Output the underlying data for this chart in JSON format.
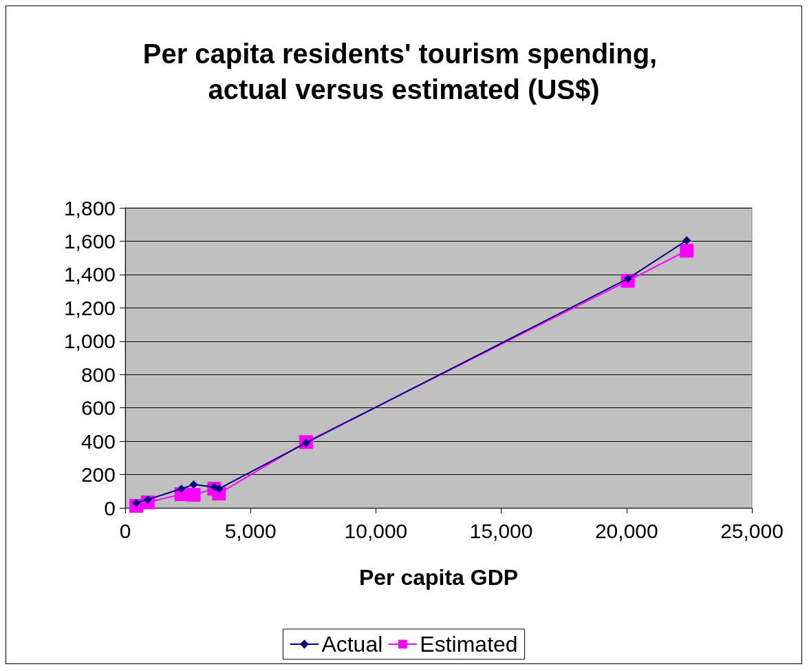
{
  "chart_data": {
    "type": "line",
    "title": "Per capita residents' tourism spending, actual versus estimated (US$)",
    "xlabel": "Per capita GDP",
    "x": [
      440,
      900,
      2240,
      2730,
      3550,
      3740,
      7210,
      20050,
      22400
    ],
    "series": [
      {
        "name": "Actual",
        "color": "#000080",
        "marker": "diamond",
        "values": [
          30,
          50,
          115,
          140,
          125,
          115,
          390,
          1375,
          1605
        ]
      },
      {
        "name": "Estimated",
        "color": "#ff00ff",
        "marker": "square",
        "values": [
          12,
          33,
          82,
          78,
          115,
          86,
          395,
          1362,
          1543
        ]
      }
    ],
    "xlim": [
      0,
      25000
    ],
    "xticks": [
      0,
      {
        "value": 5000,
        "label": "5,000"
      },
      {
        "value": 10000,
        "label": "10,000"
      },
      {
        "value": 15000,
        "label": "15,000"
      },
      {
        "value": 20000,
        "label": "20,000"
      },
      {
        "value": 25000,
        "label": "25,000"
      }
    ],
    "ylim": [
      0,
      1800
    ],
    "yticks": [
      0,
      200,
      400,
      600,
      800,
      {
        "value": 1000,
        "label": "1,000"
      },
      {
        "value": 1200,
        "label": "1,200"
      },
      {
        "value": 1400,
        "label": "1,400"
      },
      {
        "value": 1600,
        "label": "1,600"
      },
      {
        "value": 1800,
        "label": "1,800"
      }
    ],
    "grid": "y",
    "legend": "bottom",
    "line_style": "solid"
  }
}
